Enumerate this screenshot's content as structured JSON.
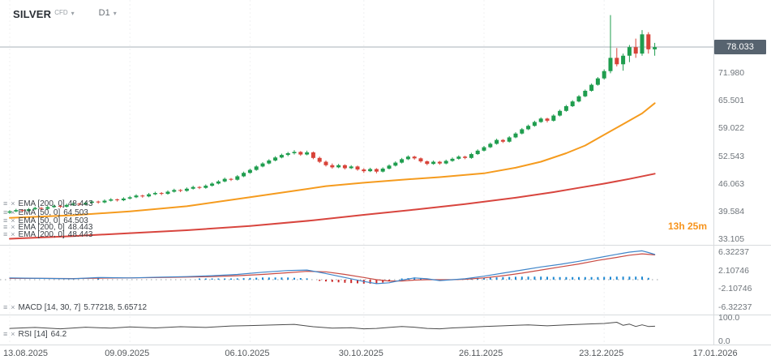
{
  "header": {
    "symbol": "SILVER",
    "instrument_type": "CFD",
    "timeframe": "D1"
  },
  "countdown": "13h 25m",
  "price_scale": {
    "current_price_label": "78.033",
    "ticks": [
      "71.980",
      "65.501",
      "59.022",
      "52.543",
      "46.063",
      "39.584",
      "33.105"
    ]
  },
  "indicators": [
    {
      "label": "EMA [200, 0]",
      "value": "48.443"
    },
    {
      "label": "EMA [50, 0]",
      "value": "64.503"
    },
    {
      "label": "EMA [50, 0]",
      "value": "64.503"
    },
    {
      "label": "EMA [200, 0]",
      "value": "48.443"
    },
    {
      "label": "EMA [200, 0]",
      "value": "48.443"
    }
  ],
  "macd_panel": {
    "label": "MACD [14, 30, 7]",
    "values": "5.77218,  5.65712",
    "ticks": [
      "6.32237",
      "2.10746",
      "-2.10746",
      "-6.32237"
    ]
  },
  "rsi_panel": {
    "label": "RSI [14]",
    "value": "64.2",
    "ticks": [
      "100.0",
      "0.0"
    ]
  },
  "time_axis": [
    "13.08.2025",
    "09.09.2025",
    "06.10.2025",
    "30.10.2025",
    "26.11.2025",
    "23.12.2025",
    "17.01.2026"
  ],
  "colors": {
    "up": "#1f9d4e",
    "down": "#d84339",
    "ema_fast": "#f59b1e",
    "ema_slow": "#d8453e",
    "macd_line": "#3f85c9",
    "macd_signal": "#c94a42",
    "hist_pos": "#1e88d2",
    "hist_neg": "#cc2b2b",
    "rsi_line": "#4a4a4a",
    "badge_bg": "#57636f",
    "countdown": "#f7941d",
    "price_line": "#aab2b9",
    "separator": "#d8dbde"
  },
  "chart_data": {
    "type": "candlestick",
    "title": "SILVER CFD D1",
    "current_price": 78.033,
    "price_axis_ticks": [
      78.033,
      71.98,
      65.501,
      59.022,
      52.543,
      46.063,
      39.584,
      33.105
    ],
    "tick_days": [
      0,
      19,
      38,
      56,
      75,
      94,
      112
    ],
    "candles": [
      [
        39.3,
        39.9,
        39.0,
        39.6
      ],
      [
        39.6,
        40.2,
        39.4,
        39.9
      ],
      [
        39.9,
        40.1,
        39.4,
        39.7
      ],
      [
        39.7,
        40.4,
        39.5,
        40.1
      ],
      [
        40.1,
        40.7,
        39.9,
        40.4
      ],
      [
        40.4,
        40.6,
        39.9,
        40.2
      ],
      [
        40.2,
        40.9,
        40.0,
        40.6
      ],
      [
        40.6,
        41.2,
        40.4,
        40.9
      ],
      [
        40.9,
        41.1,
        40.4,
        40.7
      ],
      [
        40.7,
        41.4,
        40.5,
        41.1
      ],
      [
        41.1,
        41.7,
        40.9,
        41.4
      ],
      [
        41.4,
        41.6,
        40.9,
        41.2
      ],
      [
        41.2,
        41.9,
        41.0,
        41.6
      ],
      [
        41.6,
        42.2,
        41.4,
        41.9
      ],
      [
        41.9,
        42.1,
        41.4,
        41.7
      ],
      [
        41.7,
        42.4,
        41.5,
        42.1
      ],
      [
        42.1,
        42.7,
        41.9,
        42.4
      ],
      [
        42.4,
        42.6,
        41.9,
        42.2
      ],
      [
        42.2,
        42.9,
        42.0,
        42.6
      ],
      [
        42.6,
        43.2,
        42.4,
        42.9
      ],
      [
        42.9,
        43.6,
        42.7,
        43.3
      ],
      [
        43.3,
        43.5,
        42.8,
        43.1
      ],
      [
        43.1,
        43.9,
        42.9,
        43.6
      ],
      [
        43.6,
        44.2,
        43.4,
        43.9
      ],
      [
        43.9,
        44.1,
        43.4,
        43.7
      ],
      [
        43.7,
        44.5,
        43.5,
        44.2
      ],
      [
        44.2,
        44.9,
        44.0,
        44.6
      ],
      [
        44.6,
        44.8,
        44.1,
        44.4
      ],
      [
        44.4,
        45.2,
        44.2,
        44.9
      ],
      [
        44.9,
        45.6,
        44.7,
        45.3
      ],
      [
        45.3,
        45.5,
        44.8,
        45.1
      ],
      [
        45.1,
        45.9,
        44.9,
        45.6
      ],
      [
        45.6,
        46.4,
        45.4,
        46.1
      ],
      [
        46.1,
        46.9,
        45.9,
        46.6
      ],
      [
        46.6,
        47.5,
        46.4,
        47.2
      ],
      [
        47.2,
        47.4,
        46.7,
        47.0
      ],
      [
        47.0,
        48.1,
        46.8,
        47.8
      ],
      [
        47.8,
        48.9,
        47.6,
        48.6
      ],
      [
        48.6,
        49.6,
        48.4,
        49.3
      ],
      [
        49.3,
        50.4,
        49.1,
        50.1
      ],
      [
        50.1,
        51.1,
        49.9,
        50.8
      ],
      [
        50.8,
        51.8,
        50.6,
        51.5
      ],
      [
        51.5,
        52.5,
        51.3,
        52.2
      ],
      [
        52.2,
        53.1,
        52.0,
        52.8
      ],
      [
        52.8,
        53.5,
        52.5,
        53.2
      ],
      [
        53.2,
        53.9,
        52.9,
        53.5
      ],
      [
        53.5,
        53.7,
        52.6,
        52.9
      ],
      [
        52.9,
        53.8,
        52.7,
        53.4
      ],
      [
        53.4,
        53.6,
        51.8,
        52.1
      ],
      [
        52.1,
        52.4,
        50.9,
        51.2
      ],
      [
        51.2,
        51.5,
        50.1,
        50.4
      ],
      [
        50.4,
        50.8,
        49.6,
        49.9
      ],
      [
        49.9,
        50.7,
        49.7,
        50.4
      ],
      [
        50.4,
        50.6,
        49.4,
        49.7
      ],
      [
        49.7,
        50.4,
        49.5,
        50.1
      ],
      [
        50.1,
        50.3,
        49.1,
        49.4
      ],
      [
        49.4,
        49.7,
        48.6,
        49.0
      ],
      [
        49.0,
        49.8,
        48.8,
        49.5
      ],
      [
        49.5,
        49.7,
        48.5,
        48.9
      ],
      [
        48.9,
        49.9,
        48.7,
        49.6
      ],
      [
        49.6,
        50.6,
        49.4,
        50.3
      ],
      [
        50.3,
        51.3,
        50.1,
        51.0
      ],
      [
        51.0,
        52.1,
        50.8,
        51.8
      ],
      [
        51.8,
        52.7,
        51.6,
        52.4
      ],
      [
        52.4,
        52.6,
        51.7,
        52.0
      ],
      [
        52.0,
        52.2,
        51.0,
        51.3
      ],
      [
        51.3,
        51.5,
        50.4,
        50.7
      ],
      [
        50.7,
        51.5,
        50.5,
        51.2
      ],
      [
        51.2,
        51.4,
        50.5,
        50.8
      ],
      [
        50.8,
        51.7,
        50.6,
        51.4
      ],
      [
        51.4,
        52.2,
        51.2,
        51.9
      ],
      [
        51.9,
        52.7,
        51.7,
        52.4
      ],
      [
        52.4,
        52.6,
        51.8,
        52.1
      ],
      [
        52.1,
        53.3,
        51.9,
        53.0
      ],
      [
        53.0,
        54.1,
        52.8,
        53.8
      ],
      [
        53.8,
        54.9,
        53.6,
        54.6
      ],
      [
        54.6,
        55.7,
        54.4,
        55.4
      ],
      [
        55.4,
        56.6,
        55.2,
        56.3
      ],
      [
        56.3,
        56.5,
        55.6,
        55.9
      ],
      [
        55.9,
        57.2,
        55.7,
        56.9
      ],
      [
        56.9,
        58.1,
        56.7,
        57.8
      ],
      [
        57.8,
        59.1,
        57.6,
        58.8
      ],
      [
        58.8,
        59.9,
        58.6,
        59.6
      ],
      [
        59.6,
        60.8,
        59.4,
        60.5
      ],
      [
        60.5,
        61.6,
        60.3,
        61.3
      ],
      [
        61.3,
        61.5,
        60.4,
        60.8
      ],
      [
        60.8,
        62.3,
        60.6,
        62.0
      ],
      [
        62.0,
        63.4,
        61.8,
        63.1
      ],
      [
        63.1,
        64.5,
        62.9,
        64.2
      ],
      [
        64.2,
        65.6,
        64.0,
        65.3
      ],
      [
        65.3,
        66.8,
        65.1,
        66.5
      ],
      [
        66.5,
        68.1,
        66.3,
        67.8
      ],
      [
        67.8,
        69.5,
        67.6,
        69.2
      ],
      [
        69.2,
        71.0,
        69.0,
        70.7
      ],
      [
        70.7,
        72.8,
        70.4,
        72.4
      ],
      [
        72.4,
        85.5,
        71.9,
        75.5
      ],
      [
        75.5,
        77.8,
        73.5,
        74.0
      ],
      [
        74.0,
        76.5,
        72.5,
        76.0
      ],
      [
        76.0,
        78.5,
        74.5,
        78.0
      ],
      [
        78.0,
        80.0,
        75.5,
        76.5
      ],
      [
        76.5,
        82.0,
        76.0,
        81.0
      ],
      [
        81.0,
        81.5,
        76.5,
        77.5
      ],
      [
        77.5,
        79.0,
        76.0,
        78.0
      ]
    ],
    "ema50_points": [
      [
        0,
        38.1
      ],
      [
        10,
        38.7
      ],
      [
        19,
        39.6
      ],
      [
        28,
        40.8
      ],
      [
        38,
        42.9
      ],
      [
        45,
        44.4
      ],
      [
        50,
        45.5
      ],
      [
        56,
        46.3
      ],
      [
        62,
        47.0
      ],
      [
        68,
        47.6
      ],
      [
        75,
        48.5
      ],
      [
        80,
        49.8
      ],
      [
        84,
        51.2
      ],
      [
        88,
        53.2
      ],
      [
        91,
        55.0
      ],
      [
        94,
        57.5
      ],
      [
        97,
        60.0
      ],
      [
        100,
        62.5
      ],
      [
        102,
        64.9
      ]
    ],
    "ema200_points": [
      [
        0,
        33.2
      ],
      [
        10,
        33.8
      ],
      [
        19,
        34.5
      ],
      [
        28,
        35.2
      ],
      [
        38,
        36.2
      ],
      [
        48,
        37.5
      ],
      [
        56,
        38.8
      ],
      [
        64,
        40.0
      ],
      [
        72,
        41.3
      ],
      [
        80,
        42.8
      ],
      [
        86,
        44.1
      ],
      [
        90,
        45.1
      ],
      [
        94,
        46.1
      ],
      [
        98,
        47.2
      ],
      [
        102,
        48.4
      ]
    ],
    "macd": {
      "macd_value": 5.77218,
      "signal_value": 5.65712,
      "axis_ticks": [
        6.32237,
        2.10746,
        -2.10746,
        -6.32237
      ],
      "macd_line": [
        [
          0,
          0.4
        ],
        [
          5,
          0.3
        ],
        [
          10,
          0.2
        ],
        [
          14,
          0.5
        ],
        [
          19,
          0.4
        ],
        [
          24,
          0.6
        ],
        [
          28,
          0.7
        ],
        [
          32,
          0.9
        ],
        [
          36,
          1.2
        ],
        [
          40,
          1.7
        ],
        [
          44,
          2.1
        ],
        [
          47,
          2.2
        ],
        [
          50,
          1.4
        ],
        [
          53,
          0.5
        ],
        [
          56,
          -0.4
        ],
        [
          58,
          -0.9
        ],
        [
          60,
          -0.7
        ],
        [
          62,
          -0.1
        ],
        [
          64,
          0.4
        ],
        [
          66,
          0.2
        ],
        [
          68,
          -0.2
        ],
        [
          70,
          0.0
        ],
        [
          72,
          0.2
        ],
        [
          75,
          0.8
        ],
        [
          78,
          1.5
        ],
        [
          81,
          2.2
        ],
        [
          84,
          2.9
        ],
        [
          87,
          3.5
        ],
        [
          90,
          4.2
        ],
        [
          93,
          5.0
        ],
        [
          96,
          5.8
        ],
        [
          98,
          6.3
        ],
        [
          100,
          6.6
        ],
        [
          101,
          6.2
        ],
        [
          102,
          5.77
        ]
      ],
      "signal_line": [
        [
          0,
          0.3
        ],
        [
          5,
          0.3
        ],
        [
          10,
          0.25
        ],
        [
          14,
          0.35
        ],
        [
          19,
          0.4
        ],
        [
          24,
          0.5
        ],
        [
          28,
          0.6
        ],
        [
          32,
          0.7
        ],
        [
          36,
          0.9
        ],
        [
          40,
          1.2
        ],
        [
          44,
          1.6
        ],
        [
          47,
          1.9
        ],
        [
          50,
          1.8
        ],
        [
          53,
          1.2
        ],
        [
          56,
          0.5
        ],
        [
          58,
          0.0
        ],
        [
          60,
          -0.3
        ],
        [
          62,
          -0.3
        ],
        [
          64,
          -0.1
        ],
        [
          66,
          0.0
        ],
        [
          68,
          0.0
        ],
        [
          70,
          0.0
        ],
        [
          72,
          0.1
        ],
        [
          75,
          0.4
        ],
        [
          78,
          0.9
        ],
        [
          81,
          1.5
        ],
        [
          84,
          2.2
        ],
        [
          87,
          2.9
        ],
        [
          90,
          3.6
        ],
        [
          93,
          4.4
        ],
        [
          96,
          5.1
        ],
        [
          98,
          5.6
        ],
        [
          100,
          5.9
        ],
        [
          102,
          5.66
        ]
      ]
    },
    "rsi": {
      "value": 64.2,
      "axis_ticks": [
        100.0,
        0.0
      ],
      "line": [
        [
          0,
          55
        ],
        [
          4,
          59
        ],
        [
          8,
          53
        ],
        [
          12,
          60
        ],
        [
          16,
          56
        ],
        [
          19,
          61
        ],
        [
          23,
          57
        ],
        [
          27,
          62
        ],
        [
          31,
          59
        ],
        [
          35,
          65
        ],
        [
          38,
          67
        ],
        [
          42,
          70
        ],
        [
          45,
          72
        ],
        [
          48,
          62
        ],
        [
          51,
          56
        ],
        [
          54,
          58
        ],
        [
          56,
          53
        ],
        [
          58,
          55
        ],
        [
          60,
          59
        ],
        [
          62,
          63
        ],
        [
          64,
          60
        ],
        [
          66,
          55
        ],
        [
          68,
          53
        ],
        [
          70,
          57
        ],
        [
          72,
          59
        ],
        [
          75,
          63
        ],
        [
          78,
          66
        ],
        [
          80,
          68
        ],
        [
          82,
          70
        ],
        [
          85,
          66
        ],
        [
          88,
          70
        ],
        [
          90,
          72
        ],
        [
          92,
          74
        ],
        [
          94,
          76
        ],
        [
          96,
          81
        ],
        [
          97,
          68
        ],
        [
          98,
          73
        ],
        [
          99,
          63
        ],
        [
          100,
          70
        ],
        [
          101,
          63
        ],
        [
          102,
          64.2
        ]
      ]
    }
  }
}
